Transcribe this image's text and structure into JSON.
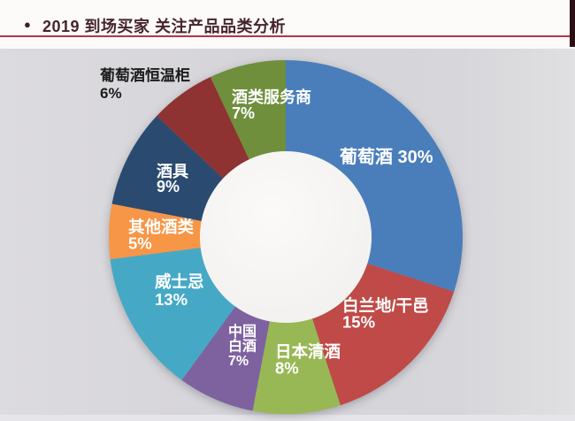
{
  "slide": {
    "header": {
      "bullet_glyph": "●",
      "title": "2019 到场买家 关注产品品类分析"
    },
    "colors": {
      "header_title": "#45252d",
      "header_rule": "#b43549",
      "corner_strip": "#2a1014",
      "chart_background": "#d6d5d9",
      "hole": "#f7f6f4"
    }
  },
  "chart_data": {
    "type": "pie",
    "subtype": "donut",
    "title": "2019 到场买家 关注产品品类分析",
    "unit": "%",
    "start_angle_deg": 0,
    "direction": "clockwise",
    "legend_position": "none",
    "labels_on_slices": true,
    "slices": [
      {
        "label": "葡萄酒",
        "value": 30,
        "color": "#4a7ebb",
        "label_lines": [
          "葡萄酒 30%"
        ],
        "label_color": "#ffffff",
        "label_placement": "inside"
      },
      {
        "label": "白兰地/干邑",
        "value": 15,
        "color": "#bf4a47",
        "label_lines": [
          "白兰地/干邑",
          "15%"
        ],
        "label_color": "#ffffff",
        "label_placement": "inside"
      },
      {
        "label": "日本清酒",
        "value": 8,
        "color": "#98b855",
        "label_lines": [
          "日本清酒",
          "8%"
        ],
        "label_color": "#ffffff",
        "label_placement": "inside"
      },
      {
        "label": "中国白酒",
        "value": 7,
        "color": "#7e62a0",
        "label_lines": [
          "中国",
          "白酒",
          "7%"
        ],
        "label_color": "#ffffff",
        "label_placement": "inside"
      },
      {
        "label": "威士忌",
        "value": 13,
        "color": "#45a9c6",
        "label_lines": [
          "威士忌",
          "13%"
        ],
        "label_color": "#ffffff",
        "label_placement": "inside"
      },
      {
        "label": "其他酒类",
        "value": 5,
        "color": "#f79646",
        "label_lines": [
          "其他酒类",
          "5%"
        ],
        "label_color": "#ffffff",
        "label_placement": "inside"
      },
      {
        "label": "酒具",
        "value": 9,
        "color": "#2b4a70",
        "label_lines": [
          "酒具",
          "9%"
        ],
        "label_color": "#ffffff",
        "label_placement": "inside"
      },
      {
        "label": "葡萄酒恒温柜",
        "value": 6,
        "color": "#8e3332",
        "label_lines": [
          "葡萄酒恒温柜",
          "6%"
        ],
        "label_color": "#1c1c1c",
        "label_placement": "outside"
      },
      {
        "label": "酒类服务商",
        "value": 7,
        "color": "#6f8f3c",
        "label_lines": [
          "酒类服务商",
          "7%"
        ],
        "label_color": "#ffffff",
        "label_placement": "inside"
      }
    ]
  }
}
